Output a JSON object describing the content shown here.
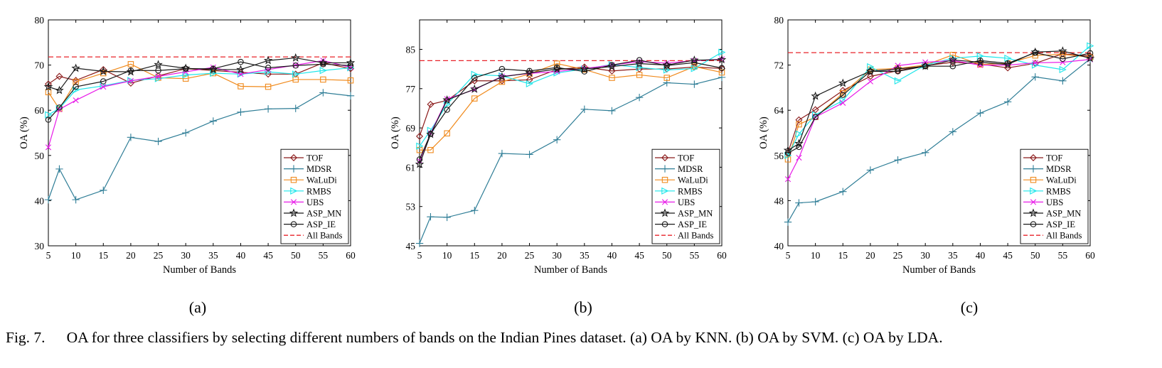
{
  "caption": {
    "label": "Fig. 7.",
    "text": "OA for three classifiers by selecting different numbers of bands on the Indian Pines dataset. (a) OA by KNN. (b) OA by SVM. (c) OA by LDA."
  },
  "chart_data": [
    {
      "type": "line",
      "sublabel": "(a)",
      "xlabel": "Number of Bands",
      "ylabel": "OA  (%)",
      "xlim": [
        5,
        60
      ],
      "ylim": [
        30,
        80
      ],
      "xticks": [
        5,
        10,
        15,
        20,
        25,
        30,
        35,
        40,
        45,
        50,
        55,
        60
      ],
      "yticks": [
        30,
        40,
        50,
        60,
        70,
        80
      ],
      "x": [
        5,
        7,
        10,
        15,
        20,
        25,
        30,
        35,
        40,
        45,
        50,
        55,
        60
      ],
      "legend_position": "bottom-right",
      "baseline": {
        "name": "All Bands",
        "value": 71.8
      },
      "series": [
        {
          "name": "TOF",
          "values": [
            65.8,
            67.5,
            66.6,
            69.0,
            66.0,
            67.6,
            69.2,
            68.8,
            68.4,
            68.0,
            68.0,
            70.5,
            69.2
          ]
        },
        {
          "name": "MDSR",
          "values": [
            40.2,
            47.0,
            40.2,
            42.3,
            54.0,
            53.1,
            55.0,
            57.6,
            59.6,
            60.3,
            60.4,
            63.9,
            63.2
          ]
        },
        {
          "name": "WaLuDi",
          "values": [
            64.0,
            60.3,
            66.3,
            68.2,
            70.2,
            67.2,
            67.0,
            68.2,
            65.3,
            65.2,
            66.8,
            66.8,
            66.6
          ]
        },
        {
          "name": "RMBS",
          "values": [
            59.0,
            60.4,
            64.5,
            65.4,
            66.6,
            67.0,
            67.8,
            68.2,
            68.0,
            68.5,
            68.0,
            68.8,
            69.4
          ]
        },
        {
          "name": "UBS",
          "values": [
            51.8,
            60.2,
            62.2,
            65.2,
            66.5,
            67.5,
            68.5,
            69.5,
            68.0,
            69.0,
            70.0,
            71.0,
            69.5
          ]
        },
        {
          "name": "ASP_MN",
          "values": [
            65.2,
            64.4,
            69.3,
            68.6,
            68.5,
            70.1,
            69.3,
            69.0,
            69.0,
            71.0,
            71.6,
            70.5,
            70.5
          ]
        },
        {
          "name": "ASP_IE",
          "values": [
            57.9,
            60.6,
            65.2,
            66.4,
            68.8,
            68.8,
            69.2,
            69.2,
            70.7,
            69.4,
            69.9,
            70.2,
            69.9
          ]
        }
      ]
    },
    {
      "type": "line",
      "sublabel": "(b)",
      "xlabel": "Number of Bands",
      "ylabel": "OA  (%)",
      "xlim": [
        5,
        60
      ],
      "ylim": [
        45,
        91
      ],
      "xticks": [
        5,
        10,
        15,
        20,
        25,
        30,
        35,
        40,
        45,
        50,
        55,
        60
      ],
      "yticks": [
        45,
        53,
        61,
        69,
        77,
        85
      ],
      "x": [
        5,
        7,
        10,
        15,
        20,
        25,
        30,
        35,
        40,
        45,
        50,
        55,
        60
      ],
      "legend_position": "bottom-right",
      "baseline": {
        "name": "All Bands",
        "value": 82.7
      },
      "series": [
        {
          "name": "TOF",
          "values": [
            67.3,
            73.8,
            74.6,
            78.6,
            78.6,
            78.8,
            80.9,
            81.4,
            80.6,
            81.0,
            81.0,
            81.4,
            81.1
          ]
        },
        {
          "name": "MDSR",
          "values": [
            45.5,
            50.9,
            50.8,
            52.2,
            63.8,
            63.6,
            66.6,
            72.8,
            72.5,
            75.2,
            78.2,
            77.9,
            79.3
          ]
        },
        {
          "name": "WaLuDi",
          "values": [
            64.5,
            64.5,
            67.9,
            75.0,
            78.4,
            80.0,
            82.1,
            80.9,
            79.2,
            79.8,
            79.2,
            81.5,
            80.3
          ]
        },
        {
          "name": "RMBS",
          "values": [
            65.3,
            68.5,
            73.8,
            79.9,
            79.6,
            78.0,
            80.2,
            81.0,
            81.9,
            81.3,
            80.8,
            81.1,
            84.4
          ]
        },
        {
          "name": "UBS",
          "values": [
            62.3,
            67.9,
            74.9,
            76.8,
            79.5,
            80.1,
            80.5,
            81.1,
            81.8,
            82.5,
            82.2,
            82.7,
            83.0
          ]
        },
        {
          "name": "ASP_MN",
          "values": [
            61.6,
            67.7,
            74.7,
            76.9,
            79.4,
            80.2,
            81.0,
            81.0,
            81.5,
            82.1,
            81.8,
            82.8,
            82.9
          ]
        },
        {
          "name": "ASP_IE",
          "values": [
            62.6,
            67.8,
            72.7,
            79.2,
            81.0,
            80.6,
            81.3,
            80.5,
            81.8,
            82.8,
            81.7,
            82.3,
            81.2
          ]
        }
      ]
    },
    {
      "type": "line",
      "sublabel": "(c)",
      "xlabel": "Number of Bands",
      "ylabel": "OA  (%)",
      "xlim": [
        5,
        60
      ],
      "ylim": [
        40,
        80
      ],
      "xticks": [
        5,
        10,
        15,
        20,
        25,
        30,
        35,
        40,
        45,
        50,
        55,
        60
      ],
      "yticks": [
        40,
        48,
        56,
        64,
        72,
        80
      ],
      "x": [
        5,
        7,
        10,
        15,
        20,
        25,
        30,
        35,
        40,
        45,
        50,
        55,
        60
      ],
      "legend_position": "bottom-right",
      "baseline": {
        "name": "All Bands",
        "value": 74.2
      },
      "series": [
        {
          "name": "TOF",
          "values": [
            56.5,
            62.3,
            64.1,
            67.5,
            70.0,
            71.0,
            71.9,
            72.5,
            72.2,
            71.5,
            72.3,
            74.0,
            73.6
          ]
        },
        {
          "name": "MDSR",
          "values": [
            44.2,
            47.6,
            47.8,
            49.6,
            53.4,
            55.2,
            56.5,
            60.2,
            63.5,
            65.5,
            69.9,
            69.2,
            73.1
          ]
        },
        {
          "name": "WaLuDi",
          "values": [
            55.3,
            61.5,
            62.8,
            67.0,
            71.2,
            71.4,
            72.0,
            73.8,
            72.1,
            72.3,
            73.7,
            73.9,
            73.4
          ]
        },
        {
          "name": "RMBS",
          "values": [
            56.0,
            59.8,
            63.2,
            65.7,
            71.7,
            69.2,
            72.0,
            73.2,
            73.6,
            73.2,
            72.0,
            71.2,
            75.4
          ]
        },
        {
          "name": "UBS",
          "values": [
            51.8,
            55.6,
            62.8,
            65.3,
            69.1,
            71.9,
            72.5,
            72.8,
            72.0,
            72.0,
            72.4,
            72.5,
            73.0
          ]
        },
        {
          "name": "ASP_MN",
          "values": [
            56.9,
            58.1,
            66.5,
            68.8,
            70.9,
            71.3,
            71.8,
            72.9,
            72.5,
            72.1,
            74.3,
            74.5,
            73.2
          ]
        },
        {
          "name": "ASP_IE",
          "values": [
            56.4,
            57.5,
            62.8,
            66.7,
            70.9,
            70.9,
            71.8,
            71.8,
            72.8,
            72.3,
            74.2,
            73.1,
            74.1
          ]
        }
      ]
    }
  ],
  "colors": {
    "TOF": "#8b1a1a",
    "MDSR": "#2e7d96",
    "WaLuDi": "#f08a1c",
    "RMBS": "#1fe6ea",
    "UBS": "#e81ce8",
    "ASP_MN": "#1a1a1a",
    "ASP_IE": "#1a1a1a",
    "All Bands": "#e8232a"
  },
  "markers": {
    "TOF": "diamond",
    "MDSR": "plus",
    "WaLuDi": "square",
    "RMBS": "triangle-right",
    "UBS": "x",
    "ASP_MN": "star",
    "ASP_IE": "circle"
  }
}
